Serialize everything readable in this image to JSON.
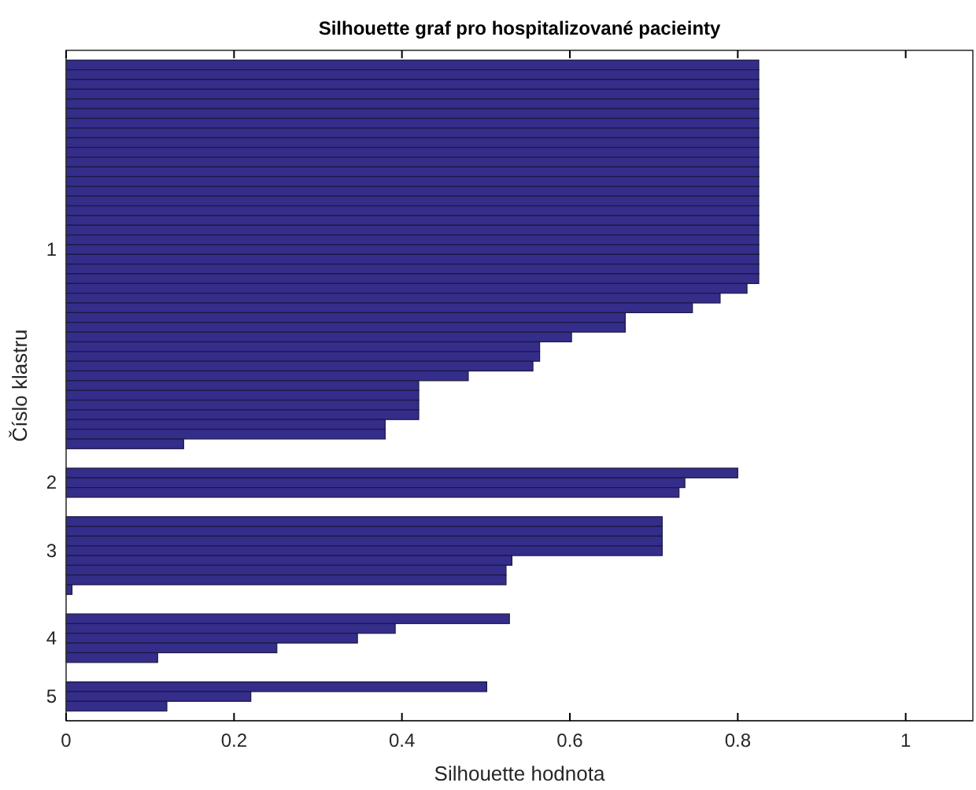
{
  "chart_data": {
    "type": "bar",
    "orientation": "horizontal",
    "title": "Silhouette graf pro hospitalizované pacieinty",
    "xlabel": "Silhouette hodnota",
    "ylabel": "Číslo klastru",
    "categories": [
      null,
      null,
      null,
      null,
      null,
      null,
      null,
      null,
      null,
      null,
      null,
      null,
      null,
      null,
      null,
      null,
      null,
      null,
      null,
      "1",
      null,
      null,
      null,
      null,
      null,
      null,
      null,
      null,
      null,
      null,
      null,
      null,
      null,
      null,
      null,
      null,
      null,
      null,
      null,
      null,
      null,
      null,
      null,
      "2",
      null,
      null,
      null,
      null,
      null,
      null,
      "3",
      null,
      null,
      null,
      null,
      null,
      null,
      null,
      null,
      "4",
      null,
      null,
      null,
      null,
      null,
      "5",
      null
    ],
    "values": [
      0.825,
      0.825,
      0.825,
      0.825,
      0.825,
      0.825,
      0.825,
      0.825,
      0.825,
      0.825,
      0.825,
      0.825,
      0.825,
      0.825,
      0.825,
      0.825,
      0.825,
      0.825,
      0.825,
      0.825,
      0.825,
      0.825,
      0.825,
      0.811,
      0.779,
      0.746,
      0.666,
      0.666,
      0.602,
      0.564,
      0.564,
      0.556,
      0.479,
      0.42,
      0.42,
      0.42,
      0.42,
      0.38,
      0.38,
      0.14,
      null,
      null,
      0.8,
      0.737,
      0.73,
      null,
      null,
      0.71,
      0.71,
      0.71,
      0.71,
      0.531,
      0.524,
      0.524,
      0.007,
      null,
      null,
      0.528,
      0.392,
      0.347,
      0.251,
      0.109,
      null,
      null,
      0.501,
      0.22,
      0.12
    ],
    "color": "#352d8a",
    "xlim": [
      0,
      1.08
    ],
    "xticks": [
      0,
      0.2,
      0.4,
      0.6,
      0.8,
      1
    ],
    "grid": false
  }
}
